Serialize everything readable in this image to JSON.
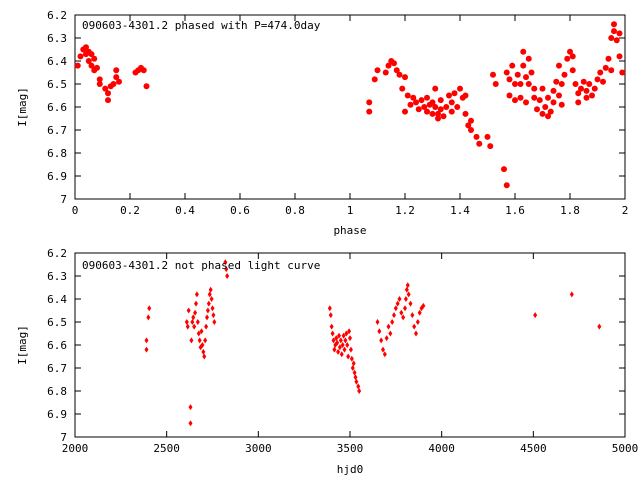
{
  "chart_data": [
    {
      "type": "scatter",
      "title": "090603-4301.2 phased with P=474.0day",
      "xlabel": "phase",
      "ylabel": "I[mag]",
      "xlim": [
        0,
        2
      ],
      "ylim": [
        6.2,
        7
      ],
      "y_inverted": true,
      "grid": false,
      "marker_color": "#ff0000",
      "marker": "filled-circle",
      "x_ticks": [
        "0",
        "0.2",
        "0.4",
        "0.6",
        "0.8",
        "1",
        "1.2",
        "1.4",
        "1.6",
        "1.8",
        "2"
      ],
      "y_ticks": [
        "6.2",
        "6.3",
        "6.4",
        "6.5",
        "6.6",
        "6.7",
        "6.8",
        "6.9",
        "7"
      ],
      "points": [
        [
          0.01,
          6.42
        ],
        [
          0.02,
          6.38
        ],
        [
          0.03,
          6.35
        ],
        [
          0.04,
          6.34
        ],
        [
          0.04,
          6.37
        ],
        [
          0.05,
          6.36
        ],
        [
          0.05,
          6.4
        ],
        [
          0.06,
          6.37
        ],
        [
          0.06,
          6.42
        ],
        [
          0.07,
          6.39
        ],
        [
          0.07,
          6.44
        ],
        [
          0.08,
          6.43
        ],
        [
          0.09,
          6.48
        ],
        [
          0.09,
          6.5
        ],
        [
          0.11,
          6.52
        ],
        [
          0.12,
          6.54
        ],
        [
          0.12,
          6.57
        ],
        [
          0.13,
          6.51
        ],
        [
          0.14,
          6.5
        ],
        [
          0.15,
          6.47
        ],
        [
          0.15,
          6.44
        ],
        [
          0.16,
          6.49
        ],
        [
          0.22,
          6.45
        ],
        [
          0.23,
          6.44
        ],
        [
          0.24,
          6.43
        ],
        [
          0.25,
          6.44
        ],
        [
          0.26,
          6.51
        ],
        [
          1.07,
          6.58
        ],
        [
          1.07,
          6.62
        ],
        [
          1.09,
          6.48
        ],
        [
          1.1,
          6.44
        ],
        [
          1.13,
          6.45
        ],
        [
          1.14,
          6.42
        ],
        [
          1.15,
          6.4
        ],
        [
          1.16,
          6.41
        ],
        [
          1.17,
          6.44
        ],
        [
          1.18,
          6.46
        ],
        [
          1.19,
          6.52
        ],
        [
          1.2,
          6.47
        ],
        [
          1.2,
          6.62
        ],
        [
          1.21,
          6.55
        ],
        [
          1.22,
          6.59
        ],
        [
          1.23,
          6.56
        ],
        [
          1.24,
          6.58
        ],
        [
          1.25,
          6.61
        ],
        [
          1.26,
          6.57
        ],
        [
          1.27,
          6.6
        ],
        [
          1.28,
          6.62
        ],
        [
          1.28,
          6.56
        ],
        [
          1.29,
          6.59
        ],
        [
          1.3,
          6.63
        ],
        [
          1.3,
          6.58
        ],
        [
          1.31,
          6.52
        ],
        [
          1.31,
          6.6
        ],
        [
          1.32,
          6.63
        ],
        [
          1.32,
          6.65
        ],
        [
          1.33,
          6.61
        ],
        [
          1.33,
          6.57
        ],
        [
          1.34,
          6.64
        ],
        [
          1.35,
          6.6
        ],
        [
          1.36,
          6.55
        ],
        [
          1.37,
          6.58
        ],
        [
          1.37,
          6.62
        ],
        [
          1.38,
          6.54
        ],
        [
          1.39,
          6.6
        ],
        [
          1.4,
          6.52
        ],
        [
          1.41,
          6.56
        ],
        [
          1.42,
          6.55
        ],
        [
          1.42,
          6.63
        ],
        [
          1.43,
          6.68
        ],
        [
          1.44,
          6.7
        ],
        [
          1.44,
          6.66
        ],
        [
          1.46,
          6.73
        ],
        [
          1.47,
          6.76
        ],
        [
          1.5,
          6.73
        ],
        [
          1.51,
          6.77
        ],
        [
          1.52,
          6.46
        ],
        [
          1.53,
          6.5
        ],
        [
          1.56,
          6.87
        ],
        [
          1.57,
          6.94
        ],
        [
          1.57,
          6.45
        ],
        [
          1.58,
          6.48
        ],
        [
          1.58,
          6.55
        ],
        [
          1.59,
          6.42
        ],
        [
          1.6,
          6.5
        ],
        [
          1.6,
          6.57
        ],
        [
          1.61,
          6.46
        ],
        [
          1.62,
          6.5
        ],
        [
          1.62,
          6.56
        ],
        [
          1.63,
          6.36
        ],
        [
          1.63,
          6.42
        ],
        [
          1.64,
          6.47
        ],
        [
          1.64,
          6.58
        ],
        [
          1.65,
          6.5
        ],
        [
          1.65,
          6.39
        ],
        [
          1.66,
          6.45
        ],
        [
          1.67,
          6.52
        ],
        [
          1.67,
          6.56
        ],
        [
          1.68,
          6.61
        ],
        [
          1.69,
          6.57
        ],
        [
          1.7,
          6.63
        ],
        [
          1.7,
          6.52
        ],
        [
          1.71,
          6.6
        ],
        [
          1.72,
          6.64
        ],
        [
          1.72,
          6.56
        ],
        [
          1.73,
          6.62
        ],
        [
          1.74,
          6.58
        ],
        [
          1.74,
          6.53
        ],
        [
          1.75,
          6.49
        ],
        [
          1.76,
          6.42
        ],
        [
          1.76,
          6.55
        ],
        [
          1.77,
          6.59
        ],
        [
          1.77,
          6.5
        ],
        [
          1.78,
          6.46
        ],
        [
          1.79,
          6.39
        ],
        [
          1.8,
          6.36
        ],
        [
          1.81,
          6.38
        ],
        [
          1.81,
          6.44
        ],
        [
          1.82,
          6.5
        ],
        [
          1.83,
          6.54
        ],
        [
          1.83,
          6.58
        ],
        [
          1.84,
          6.52
        ],
        [
          1.85,
          6.49
        ],
        [
          1.86,
          6.56
        ],
        [
          1.86,
          6.53
        ],
        [
          1.87,
          6.5
        ],
        [
          1.88,
          6.55
        ],
        [
          1.89,
          6.52
        ],
        [
          1.9,
          6.48
        ],
        [
          1.91,
          6.45
        ],
        [
          1.92,
          6.49
        ],
        [
          1.93,
          6.43
        ],
        [
          1.94,
          6.39
        ],
        [
          1.95,
          6.44
        ],
        [
          1.95,
          6.3
        ],
        [
          1.96,
          6.27
        ],
        [
          1.96,
          6.24
        ],
        [
          1.97,
          6.31
        ],
        [
          1.98,
          6.28
        ],
        [
          1.98,
          6.38
        ],
        [
          1.99,
          6.45
        ]
      ]
    },
    {
      "type": "scatter",
      "title": "090603-4301.2 not phased light curve",
      "xlabel": "hjd0",
      "ylabel": "I[mag]",
      "xlim": [
        2000,
        5000
      ],
      "ylim": [
        6.2,
        7
      ],
      "y_inverted": true,
      "grid": false,
      "marker_color": "#ff0000",
      "marker": "small-diamond",
      "x_ticks": [
        "2000",
        "2500",
        "3000",
        "3500",
        "4000",
        "4500",
        "5000"
      ],
      "y_ticks": [
        "6.2",
        "6.3",
        "6.4",
        "6.5",
        "6.6",
        "6.7",
        "6.8",
        "6.9",
        "7"
      ],
      "points": [
        [
          2390,
          6.58
        ],
        [
          2390,
          6.62
        ],
        [
          2400,
          6.48
        ],
        [
          2405,
          6.44
        ],
        [
          2610,
          6.5
        ],
        [
          2615,
          6.52
        ],
        [
          2620,
          6.45
        ],
        [
          2630,
          6.87
        ],
        [
          2630,
          6.94
        ],
        [
          2635,
          6.58
        ],
        [
          2640,
          6.5
        ],
        [
          2645,
          6.48
        ],
        [
          2650,
          6.52
        ],
        [
          2655,
          6.46
        ],
        [
          2660,
          6.42
        ],
        [
          2665,
          6.38
        ],
        [
          2670,
          6.5
        ],
        [
          2675,
          6.55
        ],
        [
          2680,
          6.58
        ],
        [
          2685,
          6.61
        ],
        [
          2690,
          6.54
        ],
        [
          2695,
          6.6
        ],
        [
          2700,
          6.63
        ],
        [
          2705,
          6.65
        ],
        [
          2710,
          6.58
        ],
        [
          2715,
          6.52
        ],
        [
          2720,
          6.48
        ],
        [
          2725,
          6.45
        ],
        [
          2730,
          6.42
        ],
        [
          2735,
          6.38
        ],
        [
          2740,
          6.36
        ],
        [
          2745,
          6.4
        ],
        [
          2750,
          6.44
        ],
        [
          2755,
          6.47
        ],
        [
          2760,
          6.5
        ],
        [
          2820,
          6.24
        ],
        [
          2825,
          6.27
        ],
        [
          2830,
          6.3
        ],
        [
          3390,
          6.44
        ],
        [
          3395,
          6.47
        ],
        [
          3400,
          6.52
        ],
        [
          3405,
          6.55
        ],
        [
          3410,
          6.58
        ],
        [
          3415,
          6.62
        ],
        [
          3420,
          6.6
        ],
        [
          3425,
          6.57
        ],
        [
          3430,
          6.59
        ],
        [
          3435,
          6.63
        ],
        [
          3440,
          6.56
        ],
        [
          3445,
          6.61
        ],
        [
          3450,
          6.58
        ],
        [
          3455,
          6.64
        ],
        [
          3460,
          6.6
        ],
        [
          3465,
          6.56
        ],
        [
          3470,
          6.62
        ],
        [
          3475,
          6.58
        ],
        [
          3480,
          6.55
        ],
        [
          3485,
          6.6
        ],
        [
          3490,
          6.65
        ],
        [
          3495,
          6.54
        ],
        [
          3500,
          6.57
        ],
        [
          3505,
          6.62
        ],
        [
          3510,
          6.66
        ],
        [
          3515,
          6.7
        ],
        [
          3520,
          6.68
        ],
        [
          3525,
          6.72
        ],
        [
          3530,
          6.74
        ],
        [
          3535,
          6.76
        ],
        [
          3545,
          6.78
        ],
        [
          3550,
          6.8
        ],
        [
          3650,
          6.5
        ],
        [
          3660,
          6.54
        ],
        [
          3670,
          6.58
        ],
        [
          3680,
          6.62
        ],
        [
          3690,
          6.64
        ],
        [
          3700,
          6.57
        ],
        [
          3710,
          6.52
        ],
        [
          3720,
          6.55
        ],
        [
          3730,
          6.5
        ],
        [
          3740,
          6.47
        ],
        [
          3750,
          6.44
        ],
        [
          3760,
          6.42
        ],
        [
          3770,
          6.4
        ],
        [
          3780,
          6.46
        ],
        [
          3790,
          6.48
        ],
        [
          3800,
          6.44
        ],
        [
          3805,
          6.4
        ],
        [
          3810,
          6.36
        ],
        [
          3815,
          6.34
        ],
        [
          3820,
          6.38
        ],
        [
          3830,
          6.42
        ],
        [
          3840,
          6.47
        ],
        [
          3850,
          6.52
        ],
        [
          3860,
          6.55
        ],
        [
          3870,
          6.5
        ],
        [
          3880,
          6.46
        ],
        [
          3890,
          6.44
        ],
        [
          3900,
          6.43
        ],
        [
          4510,
          6.47
        ],
        [
          4710,
          6.38
        ],
        [
          4860,
          6.52
        ]
      ]
    }
  ]
}
